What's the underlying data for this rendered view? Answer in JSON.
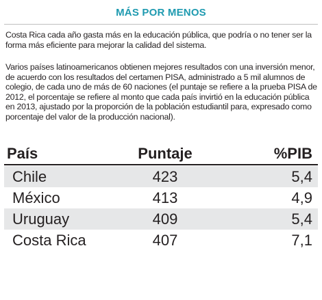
{
  "header": {
    "title": "MÁS POR MENOS"
  },
  "paragraphs": [
    "Costa Rica cada año gasta más en la educación pública, que podría o no tener ser la forma más eficiente para mejorar la calidad del sistema.",
    "Varios países latinoamericanos obtienen mejores resultados con una inversión menor, de acuerdo con los resultados del certamen PISA, administrado a 5 mil alumnos de colegio, de cada uno de más de 60 naciones (el puntaje se refiere a la prueba PISA de 2012, el porcentaje se refiere al monto que cada país invirtió en la educación pública en 2013, ajustado por la proporción de la población estudiantil para, expresado como porcentaje del valor de la producción nacional)."
  ],
  "table": {
    "headers": [
      "País",
      "Puntaje",
      "%PIB"
    ],
    "rows": [
      [
        "Chile",
        "423",
        "5,4"
      ],
      [
        "México",
        "413",
        "4,9"
      ],
      [
        "Uruguay",
        "409",
        "5,4"
      ],
      [
        "Costa Rica",
        "407",
        "7,1"
      ]
    ]
  }
}
